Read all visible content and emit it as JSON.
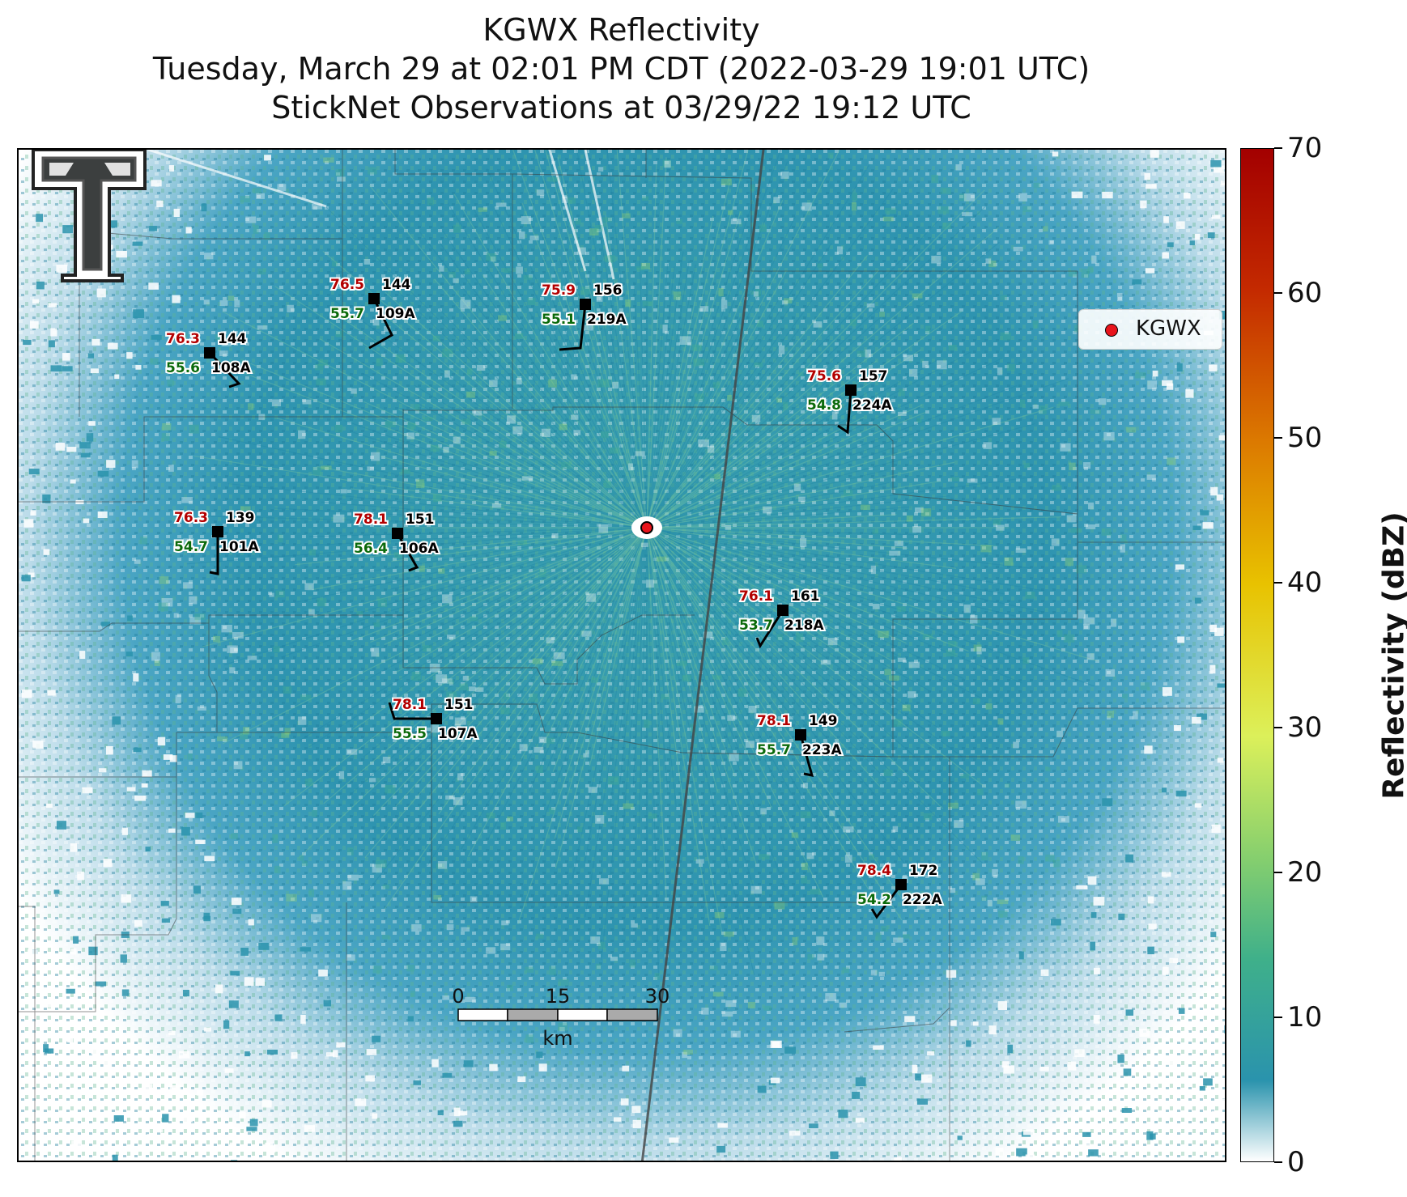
{
  "title": {
    "line1": "KGWX Reflectivity",
    "line2": "Tuesday, March 29 at 02:01 PM CDT (2022-03-29 19:01 UTC)",
    "line3": "StickNet Observations at 03/29/22 19:12 UTC"
  },
  "legend": {
    "label": "KGWX",
    "marker_color": "#e8141b"
  },
  "colorbar": {
    "title": "Reflectivity (dBZ)",
    "ticks": [
      "0",
      "10",
      "20",
      "30",
      "40",
      "50",
      "60",
      "70"
    ],
    "colors": [
      "#ffffff",
      "#2a93ad",
      "#3fb08a",
      "#86cf6e",
      "#dcf05a",
      "#e8c200",
      "#dc7a00",
      "#c42a00",
      "#a30000"
    ]
  },
  "scalebar": {
    "labels": [
      "0",
      "15",
      "30"
    ],
    "unit": "km"
  },
  "stations": [
    {
      "id": "108A",
      "temp": "76.3",
      "dew": "55.6",
      "dir": "144"
    },
    {
      "id": "109A",
      "temp": "76.5",
      "dew": "55.7",
      "dir": "144"
    },
    {
      "id": "219A",
      "temp": "75.9",
      "dew": "55.1",
      "dir": "156"
    },
    {
      "id": "224A",
      "temp": "75.6",
      "dew": "54.8",
      "dir": "157"
    },
    {
      "id": "101A",
      "temp": "76.3",
      "dew": "54.7",
      "dir": "139"
    },
    {
      "id": "106A",
      "temp": "78.1",
      "dew": "56.4",
      "dir": "151"
    },
    {
      "id": "218A",
      "temp": "76.1",
      "dew": "53.7",
      "dir": "161"
    },
    {
      "id": "107A",
      "temp": "78.1",
      "dew": "55.5",
      "dir": "151"
    },
    {
      "id": "223A",
      "temp": "78.1",
      "dew": "55.7",
      "dir": "149"
    },
    {
      "id": "222A",
      "temp": "78.4",
      "dew": "54.2",
      "dir": "172"
    }
  ],
  "colors": {
    "temp_text": "#b30000",
    "dew_text": "#0b6a0b",
    "radar_marker": "#e8141b"
  }
}
